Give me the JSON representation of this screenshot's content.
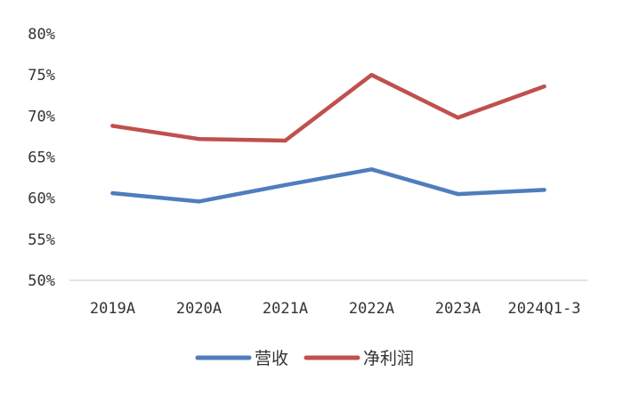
{
  "chart_data": {
    "type": "line",
    "categories": [
      "2019A",
      "2020A",
      "2021A",
      "2022A",
      "2023A",
      "2024Q1-3"
    ],
    "y_ticks": [
      "50%",
      "55%",
      "60%",
      "65%",
      "70%",
      "75%",
      "80%"
    ],
    "ylim": [
      50,
      80
    ],
    "grid": false,
    "legend_position": "bottom",
    "series": [
      {
        "name": "营收",
        "values": [
          60.6,
          59.6,
          61.6,
          63.5,
          60.5,
          61.0
        ],
        "color": "#4f7dbd"
      },
      {
        "name": "净利润",
        "values": [
          68.8,
          67.2,
          67.0,
          75.0,
          69.8,
          73.6
        ],
        "color": "#c0504d"
      }
    ]
  }
}
